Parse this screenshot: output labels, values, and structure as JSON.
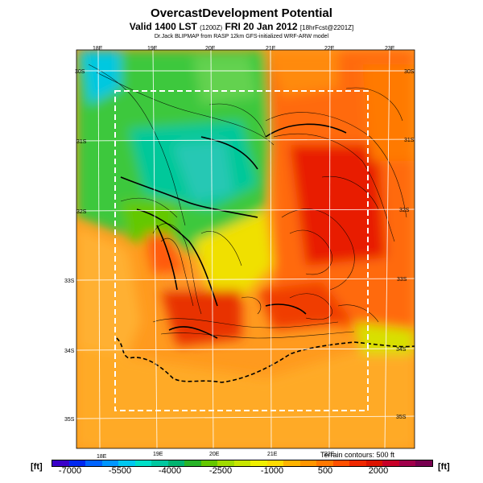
{
  "header": {
    "title": "OvercastDevelopment Potential",
    "subtitle_main": "Valid 1400 LST",
    "subtitle_code": "(1200Z)",
    "subtitle_date": "FRI 20 Jan 2012",
    "subtitle_fcst": "[18hrFcst@2201Z]",
    "source": "Dr.Jack BLIPMAP from RASP 12km GFS-initialized WRF-ARW model"
  },
  "map": {
    "lon_labels_top": [
      "18E",
      "19E",
      "20E",
      "21E",
      "22E",
      "23E"
    ],
    "lon_labels_bottom": [
      "18E",
      "19E",
      "20E",
      "21E",
      "22E"
    ],
    "lat_labels_left": [
      "30S",
      "31S",
      "32S",
      "33S",
      "34S",
      "35S"
    ],
    "lat_labels_right": [
      "30S",
      "31S",
      "32S",
      "33S",
      "34S",
      "35S"
    ],
    "terrain_note": "Terrain contours: 500 ft"
  },
  "legend": {
    "unit_left": "[ft]",
    "unit_right": "[ft]",
    "tick_labels": [
      "-7000",
      "-5500",
      "-4000",
      "-2500",
      "-1000",
      "500",
      "2000"
    ],
    "colors": [
      "#3a00c8",
      "#0028f0",
      "#0064ff",
      "#0096ff",
      "#00c8f0",
      "#00e0c8",
      "#00c8a0",
      "#00b470",
      "#28b428",
      "#64c800",
      "#a0dc00",
      "#c8e600",
      "#f0f000",
      "#ffdc00",
      "#ffb400",
      "#ff9600",
      "#ff7800",
      "#ff5000",
      "#f02800",
      "#dc1400",
      "#c80028",
      "#a0004b",
      "#780050"
    ]
  }
}
